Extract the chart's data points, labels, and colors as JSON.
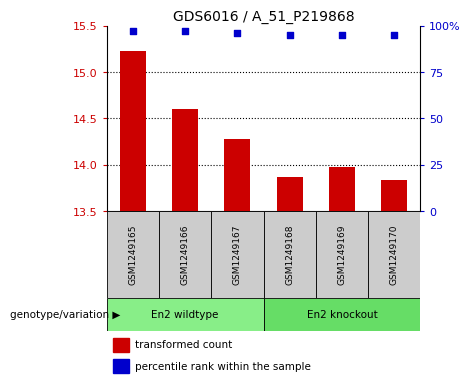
{
  "title": "GDS6016 / A_51_P219868",
  "samples": [
    "GSM1249165",
    "GSM1249166",
    "GSM1249167",
    "GSM1249168",
    "GSM1249169",
    "GSM1249170"
  ],
  "bar_values": [
    15.23,
    14.6,
    14.28,
    13.87,
    13.98,
    13.84
  ],
  "percentile_values": [
    97,
    97,
    96,
    95,
    95,
    95
  ],
  "bar_bottom": 13.5,
  "ylim_left": [
    13.5,
    15.5
  ],
  "ylim_right": [
    0,
    100
  ],
  "yticks_left": [
    13.5,
    14.0,
    14.5,
    15.0,
    15.5
  ],
  "yticks_right": [
    0,
    25,
    50,
    75,
    100
  ],
  "ytick_labels_right": [
    "0",
    "25",
    "50",
    "75",
    "100%"
  ],
  "bar_color": "#cc0000",
  "dot_color": "#0000cc",
  "groups": [
    {
      "label": "En2 wildtype",
      "indices": [
        0,
        1,
        2
      ],
      "color": "#88EE88"
    },
    {
      "label": "En2 knockout",
      "indices": [
        3,
        4,
        5
      ],
      "color": "#66DD66"
    }
  ],
  "group_label_prefix": "genotype/variation",
  "legend_bar_label": "transformed count",
  "legend_dot_label": "percentile rank within the sample",
  "bg_color": "#cccccc",
  "plot_bg": "#ffffff",
  "bar_width": 0.5,
  "grid_lines": [
    14.0,
    14.5,
    15.0
  ]
}
